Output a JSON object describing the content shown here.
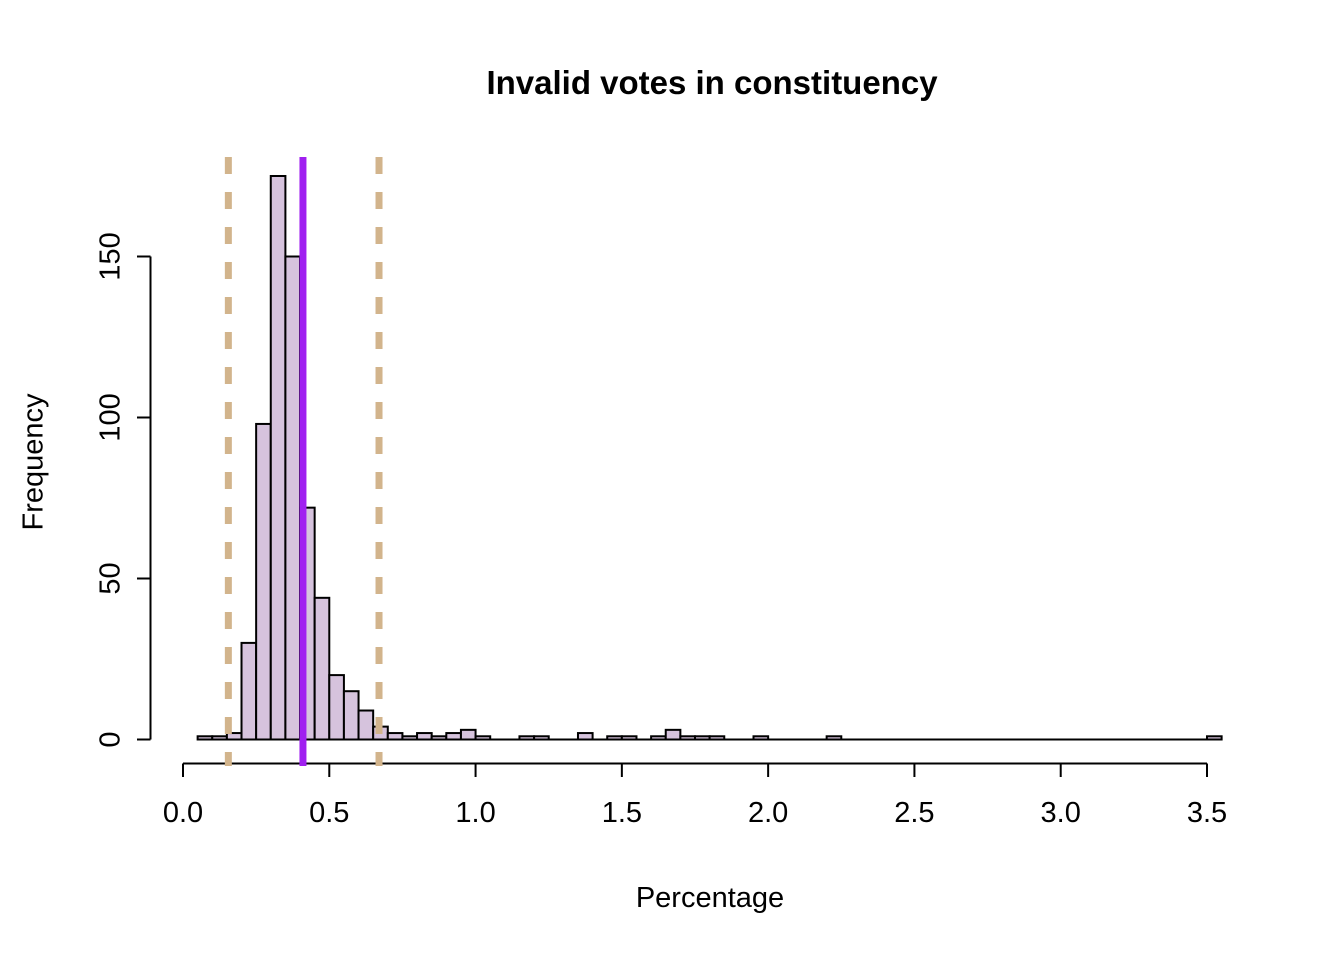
{
  "chart": {
    "title": "Invalid votes in constituency",
    "xlabel": "Percentage",
    "ylabel": "Frequency"
  },
  "chart_data": {
    "type": "bar",
    "subtype": "histogram",
    "title": "Invalid votes in constituency",
    "xlabel": "Percentage",
    "ylabel": "Frequency",
    "bin_width": 0.05,
    "range": [
      0.05,
      3.55
    ],
    "xlim": [
      0.0,
      3.55
    ],
    "ylim": [
      0,
      175
    ],
    "grid": false,
    "legend": "none",
    "bins": [
      {
        "start": 0.05,
        "count": 1
      },
      {
        "start": 0.1,
        "count": 1
      },
      {
        "start": 0.15,
        "count": 2
      },
      {
        "start": 0.2,
        "count": 30
      },
      {
        "start": 0.25,
        "count": 98
      },
      {
        "start": 0.3,
        "count": 175
      },
      {
        "start": 0.35,
        "count": 150
      },
      {
        "start": 0.4,
        "count": 72
      },
      {
        "start": 0.45,
        "count": 44
      },
      {
        "start": 0.5,
        "count": 20
      },
      {
        "start": 0.55,
        "count": 15
      },
      {
        "start": 0.6,
        "count": 9
      },
      {
        "start": 0.65,
        "count": 4
      },
      {
        "start": 0.7,
        "count": 2
      },
      {
        "start": 0.75,
        "count": 1
      },
      {
        "start": 0.8,
        "count": 2
      },
      {
        "start": 0.85,
        "count": 1
      },
      {
        "start": 0.9,
        "count": 2
      },
      {
        "start": 0.95,
        "count": 3
      },
      {
        "start": 1.0,
        "count": 1
      },
      {
        "start": 1.15,
        "count": 1
      },
      {
        "start": 1.2,
        "count": 1
      },
      {
        "start": 1.35,
        "count": 2
      },
      {
        "start": 1.45,
        "count": 1
      },
      {
        "start": 1.5,
        "count": 1
      },
      {
        "start": 1.6,
        "count": 1
      },
      {
        "start": 1.65,
        "count": 3
      },
      {
        "start": 1.7,
        "count": 1
      },
      {
        "start": 1.75,
        "count": 1
      },
      {
        "start": 1.8,
        "count": 1
      },
      {
        "start": 1.95,
        "count": 1
      },
      {
        "start": 2.2,
        "count": 1
      },
      {
        "start": 3.5,
        "count": 1
      }
    ],
    "x_ticks": [
      {
        "value": 0.0,
        "label": "0.0"
      },
      {
        "value": 0.5,
        "label": "0.5"
      },
      {
        "value": 1.0,
        "label": "1.0"
      },
      {
        "value": 1.5,
        "label": "1.5"
      },
      {
        "value": 2.0,
        "label": "2.0"
      },
      {
        "value": 2.5,
        "label": "2.5"
      },
      {
        "value": 3.0,
        "label": "3.0"
      },
      {
        "value": 3.5,
        "label": "3.5"
      }
    ],
    "y_ticks": [
      {
        "value": 0,
        "label": "0"
      },
      {
        "value": 50,
        "label": "50"
      },
      {
        "value": 100,
        "label": "100"
      },
      {
        "value": 150,
        "label": "150"
      }
    ],
    "bar_fill": "#D6C3DD",
    "bar_border": "#000000",
    "reference_lines": [
      {
        "value": 0.41,
        "color": "#A020F0",
        "style": "solid",
        "name": "mean-line"
      },
      {
        "value": 0.155,
        "color": "#D2B48C",
        "style": "dashed",
        "name": "lower-bound-line"
      },
      {
        "value": 0.67,
        "color": "#D2B48C",
        "style": "dashed",
        "name": "upper-bound-line"
      }
    ]
  }
}
